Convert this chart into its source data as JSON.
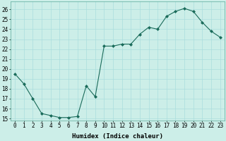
{
  "x": [
    0,
    1,
    2,
    3,
    4,
    5,
    6,
    7,
    8,
    9,
    10,
    11,
    12,
    13,
    14,
    15,
    16,
    17,
    18,
    19,
    20,
    21,
    22,
    23
  ],
  "y": [
    19.5,
    18.5,
    17.0,
    15.5,
    15.3,
    15.1,
    15.1,
    15.2,
    18.3,
    17.2,
    22.3,
    22.3,
    22.5,
    22.5,
    23.5,
    24.2,
    24.0,
    25.3,
    25.8,
    26.1,
    25.8,
    24.7,
    23.8,
    23.2
  ],
  "line_color": "#1a6b5a",
  "marker": "D",
  "marker_size": 2.0,
  "bg_color": "#cceee8",
  "grid_color": "#aadddd",
  "xlabel": "Humidex (Indice chaleur)",
  "xlim": [
    -0.5,
    23.5
  ],
  "ylim": [
    14.8,
    26.8
  ],
  "yticks": [
    15,
    16,
    17,
    18,
    19,
    20,
    21,
    22,
    23,
    24,
    25,
    26
  ],
  "xticks": [
    0,
    1,
    2,
    3,
    4,
    5,
    6,
    7,
    8,
    9,
    10,
    11,
    12,
    13,
    14,
    15,
    16,
    17,
    18,
    19,
    20,
    21,
    22,
    23
  ],
  "xlabel_fontsize": 6.5,
  "tick_fontsize": 5.5,
  "linewidth": 0.8
}
